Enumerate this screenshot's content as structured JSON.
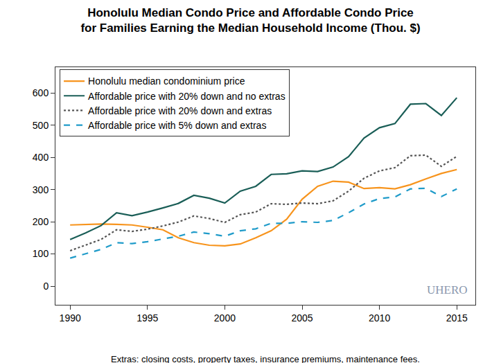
{
  "chart_data": {
    "type": "line",
    "title": "Honolulu Median Condo Price and Affordable Condo Price\nfor Families Earning the Median Household Income (Thou. $)",
    "x": [
      1990,
      1991,
      1992,
      1993,
      1994,
      1995,
      1996,
      1997,
      1998,
      1999,
      2000,
      2001,
      2002,
      2003,
      2004,
      2005,
      2006,
      2007,
      2008,
      2009,
      2010,
      2011,
      2012,
      2013,
      2014,
      2015
    ],
    "series": [
      {
        "name": "Honolulu median condominium price",
        "color": "#f7941d",
        "line_style": "solid",
        "values": [
          190,
          191,
          193,
          192,
          190,
          183,
          175,
          150,
          135,
          127,
          125,
          131,
          150,
          172,
          208,
          270,
          310,
          326,
          323,
          303,
          306,
          302,
          315,
          333,
          350,
          362
        ]
      },
      {
        "name": "Affordable price with 20% down and no extras",
        "color": "#1a5e57",
        "line_style": "solid",
        "values": [
          145,
          165,
          188,
          228,
          219,
          230,
          243,
          257,
          282,
          273,
          258,
          295,
          310,
          347,
          349,
          358,
          356,
          370,
          402,
          460,
          492,
          505,
          565,
          567,
          530,
          585
        ]
      },
      {
        "name": "Affordable price with 20% down and extras",
        "color": "#555555",
        "line_style": "dot",
        "values": [
          110,
          127,
          145,
          175,
          170,
          177,
          187,
          199,
          218,
          210,
          198,
          222,
          230,
          256,
          254,
          258,
          256,
          265,
          295,
          335,
          358,
          368,
          405,
          407,
          372,
          403
        ]
      },
      {
        "name": "Affordable price with 5% down and extras",
        "color": "#1f9bc9",
        "line_style": "dash",
        "values": [
          87,
          100,
          114,
          135,
          132,
          138,
          146,
          155,
          168,
          163,
          155,
          172,
          178,
          195,
          195,
          200,
          198,
          204,
          228,
          255,
          272,
          277,
          302,
          304,
          278,
          302
        ]
      }
    ],
    "xlim": [
      1989.05,
      2016.2
    ],
    "xticks": [
      1990,
      1995,
      2000,
      2005,
      2010,
      2015
    ],
    "ylim": [
      -58,
      680
    ],
    "yticks": [
      0,
      100,
      200,
      300,
      400,
      500,
      600
    ],
    "grid": false,
    "legend": "top left",
    "annotations": [
      "Extras: closing costs, property taxes, insurance premiums, maintenance fees.",
      "UHERO"
    ]
  }
}
